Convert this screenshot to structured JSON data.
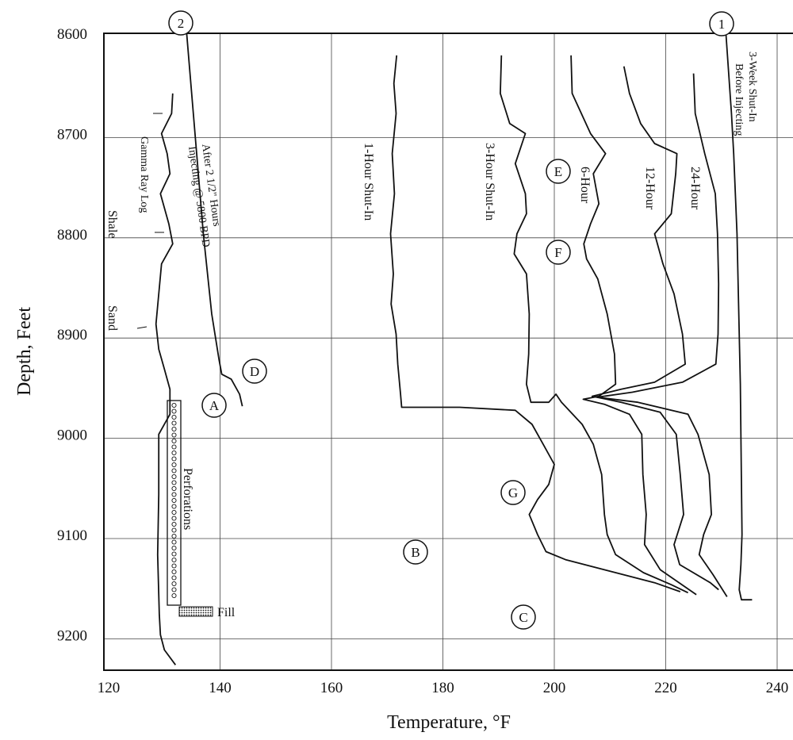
{
  "chart_data": {
    "type": "line",
    "xlabel": "Temperature, °F",
    "ylabel": "Depth, Feet",
    "xlim": [
      120,
      243
    ],
    "ylim": [
      9230,
      8600
    ],
    "x_ticks": [
      120,
      140,
      160,
      180,
      200,
      220,
      240
    ],
    "y_ticks": [
      8600,
      8700,
      8800,
      8900,
      9000,
      9100,
      9200
    ],
    "grid": true,
    "series": [
      {
        "name": "3-Week Shut-In Before Injecting",
        "marker": "1",
        "points": [
          [
            230.8,
            8600
          ],
          [
            231.3,
            8640
          ],
          [
            231.8,
            8680
          ],
          [
            232.2,
            8720
          ],
          [
            232.5,
            8760
          ],
          [
            232.8,
            8800
          ],
          [
            233,
            8850
          ],
          [
            233.2,
            8900
          ],
          [
            233.4,
            8950
          ],
          [
            233.5,
            9000
          ],
          [
            233.6,
            9050
          ],
          [
            233.7,
            9100
          ],
          [
            233.5,
            9130
          ],
          [
            233.2,
            9155
          ],
          [
            233.6,
            9165
          ],
          [
            235.5,
            9165
          ]
        ]
      },
      {
        "name": "After 2 1/2\" Hours Injecting @ 5800 BPD",
        "marker": "2",
        "points": [
          [
            134,
            8600
          ],
          [
            135.5,
            8700
          ],
          [
            137,
            8800
          ],
          [
            138.5,
            8880
          ],
          [
            139.8,
            8925
          ],
          [
            140.3,
            8940
          ],
          [
            142,
            8945
          ],
          [
            143.5,
            8960
          ],
          [
            144,
            8972
          ]
        ]
      },
      {
        "name": "1-Hour Shut-In",
        "points": [
          [
            171.7,
            8622
          ],
          [
            171.2,
            8650
          ],
          [
            171.6,
            8680
          ],
          [
            170.9,
            8720
          ],
          [
            171.3,
            8760
          ],
          [
            170.6,
            8800
          ],
          [
            171.1,
            8840
          ],
          [
            170.7,
            8870
          ],
          [
            171.6,
            8900
          ],
          [
            171.9,
            8930
          ],
          [
            172.4,
            8960
          ],
          [
            172.6,
            8973
          ],
          [
            183,
            8973
          ],
          [
            193,
            8976
          ],
          [
            196,
            8990
          ],
          [
            198,
            9010
          ],
          [
            200,
            9030
          ],
          [
            199,
            9050
          ],
          [
            197,
            9065
          ],
          [
            195.5,
            9080
          ],
          [
            197,
            9100
          ],
          [
            198.5,
            9117
          ],
          [
            202,
            9125
          ],
          [
            211,
            9138
          ],
          [
            218,
            9148
          ],
          [
            222.6,
            9157
          ]
        ]
      },
      {
        "name": "3-Hour Shut-In",
        "points": [
          [
            190.5,
            8622
          ],
          [
            190.3,
            8660
          ],
          [
            192,
            8690
          ],
          [
            194.8,
            8700
          ],
          [
            193,
            8730
          ],
          [
            194.8,
            8760
          ],
          [
            195,
            8780
          ],
          [
            193.3,
            8800
          ],
          [
            192.8,
            8820
          ],
          [
            195,
            8840
          ],
          [
            195.5,
            8880
          ],
          [
            195.4,
            8920
          ],
          [
            195,
            8950
          ],
          [
            195.8,
            8968
          ],
          [
            199,
            8968
          ],
          [
            200.3,
            8960
          ],
          [
            201.3,
            8968
          ],
          [
            205,
            8990
          ],
          [
            207,
            9010
          ],
          [
            208.5,
            9040
          ],
          [
            209,
            9080
          ],
          [
            209.5,
            9100
          ],
          [
            211,
            9120
          ],
          [
            216,
            9138
          ],
          [
            221,
            9150
          ],
          [
            224,
            9158
          ]
        ]
      },
      {
        "name": "6-Hour",
        "points": [
          [
            203,
            8622
          ],
          [
            203.2,
            8660
          ],
          [
            206.5,
            8700
          ],
          [
            209.2,
            8720
          ],
          [
            207,
            8740
          ],
          [
            208,
            8770
          ],
          [
            206.5,
            8790
          ],
          [
            205.3,
            8810
          ],
          [
            205.8,
            8825
          ],
          [
            207.8,
            8845
          ],
          [
            209.5,
            8880
          ],
          [
            210.8,
            8920
          ],
          [
            211,
            8950
          ],
          [
            208,
            8962
          ],
          [
            205.2,
            8965
          ],
          [
            209,
            8970
          ],
          [
            213.5,
            8980
          ],
          [
            215.7,
            9000
          ],
          [
            215.9,
            9040
          ],
          [
            216.5,
            9080
          ],
          [
            216.2,
            9110
          ],
          [
            219,
            9135
          ],
          [
            225.5,
            9160
          ]
        ]
      },
      {
        "name": "12-Hour",
        "points": [
          [
            212.5,
            8633
          ],
          [
            213.5,
            8660
          ],
          [
            215.5,
            8690
          ],
          [
            218,
            8710
          ],
          [
            222,
            8720
          ],
          [
            221.8,
            8740
          ],
          [
            221,
            8780
          ],
          [
            218,
            8800
          ],
          [
            219.5,
            8830
          ],
          [
            221.5,
            8860
          ],
          [
            223,
            8900
          ],
          [
            223.5,
            8930
          ],
          [
            218,
            8948
          ],
          [
            212,
            8955
          ],
          [
            206.8,
            8962
          ],
          [
            212,
            8968
          ],
          [
            219,
            8978
          ],
          [
            221.9,
            9000
          ],
          [
            222.6,
            9040
          ],
          [
            223.2,
            9080
          ],
          [
            221.5,
            9110
          ],
          [
            222.5,
            9130
          ],
          [
            228,
            9148
          ],
          [
            229.5,
            9155
          ]
        ]
      },
      {
        "name": "24-Hour",
        "points": [
          [
            225,
            8640
          ],
          [
            225.3,
            8680
          ],
          [
            227,
            8720
          ],
          [
            228.9,
            8760
          ],
          [
            229.3,
            8800
          ],
          [
            229.5,
            8850
          ],
          [
            229.4,
            8900
          ],
          [
            229,
            8930
          ],
          [
            223,
            8948
          ],
          [
            214,
            8958
          ],
          [
            207.7,
            8963
          ],
          [
            215,
            8968
          ],
          [
            224,
            8980
          ],
          [
            225.8,
            9000
          ],
          [
            227.8,
            9040
          ],
          [
            228.2,
            9080
          ],
          [
            226.8,
            9100
          ],
          [
            226,
            9120
          ],
          [
            228.5,
            9140
          ],
          [
            231,
            9162
          ]
        ]
      },
      {
        "name": "Gamma Ray Log",
        "points": [
          [
            131.5,
            8660
          ],
          [
            131.3,
            8680
          ],
          [
            129.5,
            8700
          ],
          [
            130.5,
            8720
          ],
          [
            131,
            8740
          ],
          [
            129.3,
            8760
          ],
          [
            130.8,
            8790
          ],
          [
            131.5,
            8810
          ],
          [
            129.5,
            8830
          ],
          [
            129,
            8860
          ],
          [
            128.5,
            8890
          ],
          [
            129,
            8915
          ],
          [
            130,
            8935
          ],
          [
            131,
            8955
          ],
          [
            131,
            8980
          ],
          [
            129,
            9000
          ],
          [
            129,
            9060
          ],
          [
            128.8,
            9120
          ],
          [
            129.1,
            9180
          ],
          [
            129.3,
            9200
          ],
          [
            130,
            9215
          ],
          [
            132,
            9230
          ]
        ]
      }
    ],
    "annotations": [
      {
        "text": "Gamma Ray Log"
      },
      {
        "text": "Shale"
      },
      {
        "text": "Sand"
      },
      {
        "text": "Perforations"
      },
      {
        "text": "Fill"
      },
      {
        "text": "3-Week Shut-In"
      },
      {
        "text": "Before Injecting"
      },
      {
        "text": "After 2 1/2\" Hours"
      },
      {
        "text": "Injecting @ 5800 BPD"
      },
      {
        "text": "1-Hour Shut-In"
      },
      {
        "text": "3-Hour Shut-In"
      },
      {
        "text": "6-Hour"
      },
      {
        "text": "12-Hour"
      },
      {
        "text": "24-Hour"
      }
    ],
    "point_labels": [
      "1",
      "2",
      "A",
      "B",
      "C",
      "D",
      "E",
      "F",
      "G"
    ]
  }
}
